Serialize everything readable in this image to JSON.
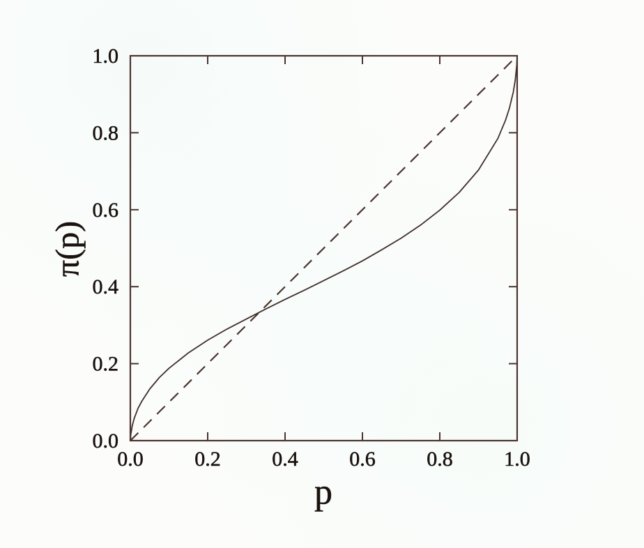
{
  "figure": {
    "background_color": "#fcfdfb",
    "axis_color": "#4a332e",
    "solid_curve_color": "#3f2e2b",
    "dashed_line_color": "#4a332e",
    "text_color": "#1a120e"
  },
  "chart_data": {
    "type": "line",
    "title": "",
    "xlabel": "p",
    "ylabel": "π(p)",
    "xlim": [
      0.0,
      1.0
    ],
    "ylim": [
      0.0,
      1.0
    ],
    "xticks": [
      0.0,
      0.2,
      0.4,
      0.6,
      0.8,
      1.0
    ],
    "yticks": [
      0.0,
      0.2,
      0.4,
      0.6,
      0.8,
      1.0
    ],
    "xtick_labels": [
      "0.0",
      "0.2",
      "0.4",
      "0.6",
      "0.8",
      "1.0"
    ],
    "ytick_labels": [
      "0.0",
      "0.2",
      "0.4",
      "0.6",
      "0.8",
      "1.0"
    ],
    "grid": false,
    "legend": false,
    "frame": "closed box with inward tick marks on all four sides",
    "x": [
      0,
      0.001,
      0.005,
      0.01,
      0.02,
      0.03,
      0.05,
      0.075,
      0.1,
      0.15,
      0.2,
      0.25,
      0.3,
      0.35,
      0.4,
      0.45,
      0.5,
      0.55,
      0.6,
      0.65,
      0.7,
      0.75,
      0.8,
      0.85,
      0.9,
      0.95,
      0.97,
      0.98,
      0.99,
      0.995,
      0.999,
      1
    ],
    "series": [
      {
        "name": "probability weighting curve π(p), inverse-S shape",
        "line_style": "solid",
        "values": [
          0,
          0.015,
          0.039,
          0.058,
          0.084,
          0.103,
          0.134,
          0.164,
          0.188,
          0.228,
          0.261,
          0.29,
          0.316,
          0.342,
          0.367,
          0.391,
          0.416,
          0.441,
          0.467,
          0.496,
          0.526,
          0.56,
          0.599,
          0.645,
          0.703,
          0.785,
          0.833,
          0.864,
          0.906,
          0.936,
          0.975,
          1
        ]
      },
      {
        "name": "identity diagonal π(p) = p",
        "line_style": "dashed",
        "values": [
          0,
          0.001,
          0.005,
          0.01,
          0.02,
          0.03,
          0.05,
          0.075,
          0.1,
          0.15,
          0.2,
          0.25,
          0.3,
          0.35,
          0.4,
          0.45,
          0.5,
          0.55,
          0.6,
          0.65,
          0.7,
          0.75,
          0.8,
          0.85,
          0.9,
          0.95,
          0.97,
          0.98,
          0.99,
          0.995,
          0.999,
          1
        ]
      }
    ]
  }
}
